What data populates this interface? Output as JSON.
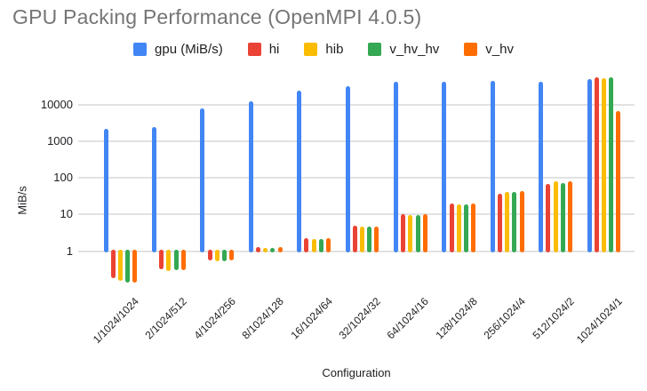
{
  "page": {
    "background": "#ffffff"
  },
  "styles": {
    "title_color": "#757575",
    "text_color": "#202124",
    "grid_color": "#e2e2e2"
  },
  "chart_data": {
    "type": "bar",
    "scale": "log-y",
    "title": "GPU Packing Performance (OpenMPI 4.0.5)",
    "xlabel": "Configuration",
    "ylabel": "MiB/s",
    "ylim": [
      0.1,
      60000
    ],
    "y_ticks": [
      1,
      10,
      100,
      1000,
      10000
    ],
    "grid": true,
    "legend_position": "top-center",
    "categories": [
      "1/1024/1024",
      "2/1024/512",
      "4/1024/256",
      "8/1024/128",
      "16/1024/64",
      "32/1024/32",
      "64/1024/16",
      "128/1024/8",
      "256/1024/4",
      "512/1024/2",
      "1024/1024/1"
    ],
    "series": [
      {
        "name": "gpu (MiB/s)",
        "color": "#4285F4",
        "values": [
          2200,
          2500,
          8000,
          12500,
          24000,
          33000,
          42000,
          44000,
          46000,
          44000,
          51000
        ]
      },
      {
        "name": "hi",
        "color": "#EA4335",
        "values": [
          0.18,
          0.31,
          0.55,
          1.3,
          2.3,
          5.0,
          10,
          20,
          38,
          70,
          56000
        ]
      },
      {
        "name": "hib",
        "color": "#FBBC04",
        "values": [
          0.15,
          0.29,
          0.53,
          1.25,
          2.1,
          4.6,
          9.8,
          19,
          41,
          80,
          54000
        ]
      },
      {
        "name": "v_hv_hv",
        "color": "#34A853",
        "values": [
          0.14,
          0.3,
          0.53,
          1.25,
          2.1,
          4.6,
          9.8,
          19,
          41,
          72,
          56000
        ]
      },
      {
        "name": "v_hv",
        "color": "#FF6D01",
        "values": [
          0.14,
          0.3,
          0.55,
          1.3,
          2.2,
          4.8,
          10,
          20,
          43,
          80,
          6800
        ]
      }
    ]
  }
}
